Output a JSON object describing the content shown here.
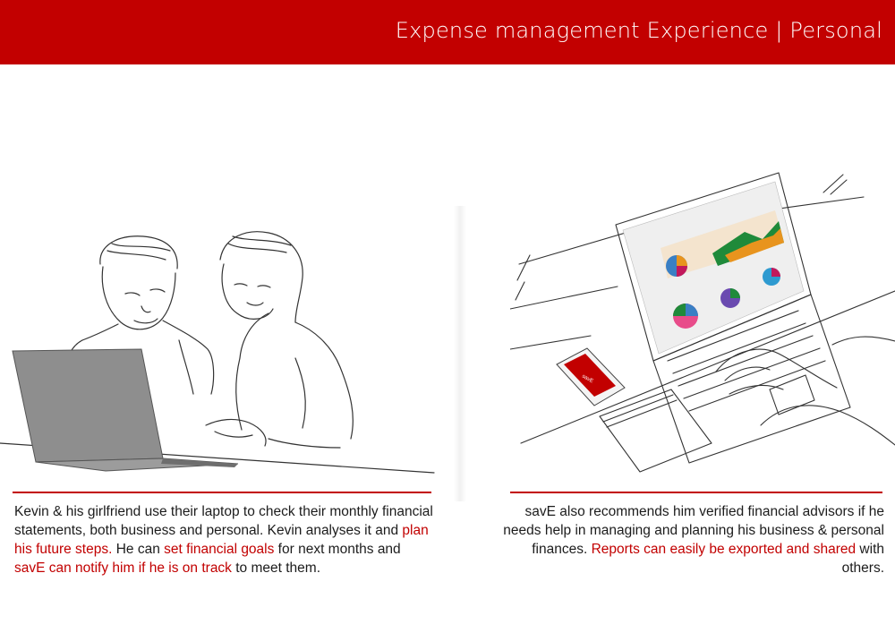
{
  "header": {
    "title": "Expense management Experience | Personal"
  },
  "left_panel": {
    "caption": {
      "p1": "Kevin & his girlfriend use their laptop to check their monthly financial statements, both business and personal. Kevin analyses it and ",
      "hl1": "plan his future steps.",
      "p2": " He can ",
      "hl2": "set financial goals",
      "p3": " for next months and ",
      "hl3": "savE can notify him if he is on track",
      "p4": " to meet them."
    }
  },
  "right_panel": {
    "phone_screen_text": "savE",
    "caption": {
      "p1": "savE also recommends him verified financial advisors if he needs help in managing and planning his business & personal finances. ",
      "hl1": "Reports can easily be exported and shared",
      "p2": " with others."
    }
  },
  "colors": {
    "accent": "#c20000",
    "text": "#1c1c1c",
    "laptop_gray": "#8c8c8c",
    "chart_green": "#1f8a3a",
    "chart_orange": "#e8941e"
  }
}
